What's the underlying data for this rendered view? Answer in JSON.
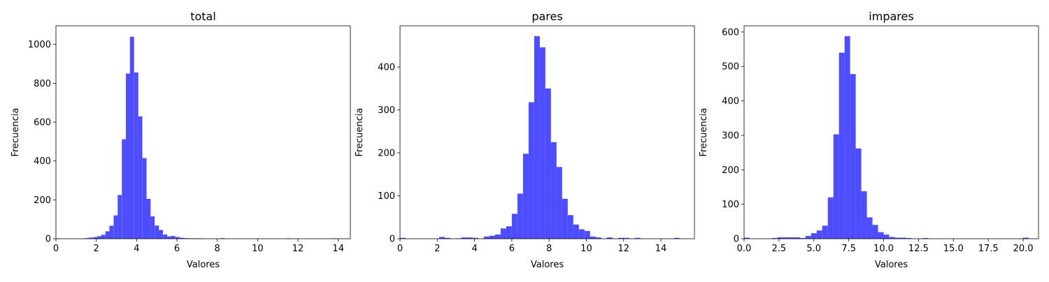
{
  "chart_data": [
    {
      "type": "bar",
      "title": "total",
      "xlabel": "Valores",
      "ylabel": "Frecuencia",
      "xlim": [
        0,
        14.6
      ],
      "ylim": [
        0,
        1096
      ],
      "xticks": [
        0,
        2,
        4,
        6,
        8,
        10,
        12,
        14
      ],
      "yticks": [
        0,
        200,
        400,
        600,
        800,
        1000
      ],
      "bar_color": "#4d4dff",
      "bin_width": 0.204,
      "bins": [
        {
          "x": 0.0,
          "y": 2
        },
        {
          "x": 1.43,
          "y": 3
        },
        {
          "x": 1.63,
          "y": 6
        },
        {
          "x": 1.84,
          "y": 8
        },
        {
          "x": 2.04,
          "y": 13
        },
        {
          "x": 2.24,
          "y": 20
        },
        {
          "x": 2.45,
          "y": 38
        },
        {
          "x": 2.65,
          "y": 67
        },
        {
          "x": 2.86,
          "y": 120
        },
        {
          "x": 3.06,
          "y": 225
        },
        {
          "x": 3.27,
          "y": 512
        },
        {
          "x": 3.47,
          "y": 850
        },
        {
          "x": 3.67,
          "y": 1040
        },
        {
          "x": 3.88,
          "y": 856
        },
        {
          "x": 4.08,
          "y": 630
        },
        {
          "x": 4.29,
          "y": 415
        },
        {
          "x": 4.49,
          "y": 205
        },
        {
          "x": 4.69,
          "y": 115
        },
        {
          "x": 4.9,
          "y": 68
        },
        {
          "x": 5.1,
          "y": 45
        },
        {
          "x": 5.31,
          "y": 22
        },
        {
          "x": 5.51,
          "y": 12
        },
        {
          "x": 5.71,
          "y": 14
        },
        {
          "x": 5.92,
          "y": 9
        },
        {
          "x": 6.12,
          "y": 5
        },
        {
          "x": 6.33,
          "y": 3
        },
        {
          "x": 6.53,
          "y": 2
        },
        {
          "x": 6.73,
          "y": 2
        },
        {
          "x": 6.94,
          "y": 2
        },
        {
          "x": 7.14,
          "y": 1
        },
        {
          "x": 8.16,
          "y": 3
        },
        {
          "x": 11.43,
          "y": 2
        },
        {
          "x": 13.67,
          "y": 2
        }
      ]
    },
    {
      "type": "bar",
      "title": "pares",
      "xlabel": "Valores",
      "ylabel": "Frecuencia",
      "xlim": [
        0,
        15.8
      ],
      "ylim": [
        0,
        496
      ],
      "xticks": [
        0,
        2,
        4,
        6,
        8,
        10,
        12,
        14
      ],
      "yticks": [
        0,
        100,
        200,
        300,
        400
      ],
      "bar_color": "#4d4dff",
      "bin_width": 0.3,
      "bins": [
        {
          "x": 0.0,
          "y": 2
        },
        {
          "x": 2.1,
          "y": 4
        },
        {
          "x": 2.4,
          "y": 2
        },
        {
          "x": 3.0,
          "y": 1
        },
        {
          "x": 3.3,
          "y": 3
        },
        {
          "x": 3.6,
          "y": 3
        },
        {
          "x": 3.9,
          "y": 2
        },
        {
          "x": 4.5,
          "y": 5
        },
        {
          "x": 4.8,
          "y": 7
        },
        {
          "x": 5.1,
          "y": 10
        },
        {
          "x": 5.4,
          "y": 24
        },
        {
          "x": 5.7,
          "y": 29
        },
        {
          "x": 6.0,
          "y": 58
        },
        {
          "x": 6.3,
          "y": 105
        },
        {
          "x": 6.6,
          "y": 198
        },
        {
          "x": 6.9,
          "y": 318
        },
        {
          "x": 7.2,
          "y": 472
        },
        {
          "x": 7.5,
          "y": 446
        },
        {
          "x": 7.8,
          "y": 350
        },
        {
          "x": 8.1,
          "y": 225
        },
        {
          "x": 8.4,
          "y": 167
        },
        {
          "x": 8.7,
          "y": 93
        },
        {
          "x": 9.0,
          "y": 55
        },
        {
          "x": 9.3,
          "y": 33
        },
        {
          "x": 9.6,
          "y": 22
        },
        {
          "x": 9.9,
          "y": 18
        },
        {
          "x": 10.2,
          "y": 5
        },
        {
          "x": 10.5,
          "y": 3
        },
        {
          "x": 11.1,
          "y": 3
        },
        {
          "x": 11.7,
          "y": 2
        },
        {
          "x": 12.0,
          "y": 2
        },
        {
          "x": 12.6,
          "y": 2
        },
        {
          "x": 14.7,
          "y": 2
        }
      ]
    },
    {
      "type": "bar",
      "title": "impares",
      "xlabel": "Valores",
      "ylabel": "Frecuencia",
      "xlim": [
        0,
        21.1
      ],
      "ylim": [
        0,
        618
      ],
      "xticks": [
        0.0,
        2.5,
        5.0,
        7.5,
        10.0,
        12.5,
        15.0,
        17.5,
        20.0
      ],
      "xtick_labels": [
        "0.0",
        "2.5",
        "5.0",
        "7.5",
        "10.0",
        "12.5",
        "15.0",
        "17.5",
        "20.0"
      ],
      "yticks": [
        0,
        100,
        200,
        300,
        400,
        500,
        600
      ],
      "bar_color": "#4d4dff",
      "bin_width": 0.4,
      "bins": [
        {
          "x": 0.0,
          "y": 3
        },
        {
          "x": 2.0,
          "y": 2
        },
        {
          "x": 2.4,
          "y": 4
        },
        {
          "x": 2.8,
          "y": 4
        },
        {
          "x": 3.2,
          "y": 4
        },
        {
          "x": 3.6,
          "y": 4
        },
        {
          "x": 4.0,
          "y": 2
        },
        {
          "x": 4.4,
          "y": 8
        },
        {
          "x": 4.8,
          "y": 16
        },
        {
          "x": 5.2,
          "y": 24
        },
        {
          "x": 5.6,
          "y": 38
        },
        {
          "x": 6.0,
          "y": 120
        },
        {
          "x": 6.4,
          "y": 303
        },
        {
          "x": 6.8,
          "y": 540
        },
        {
          "x": 7.2,
          "y": 588
        },
        {
          "x": 7.6,
          "y": 478
        },
        {
          "x": 8.0,
          "y": 262
        },
        {
          "x": 8.4,
          "y": 138
        },
        {
          "x": 8.8,
          "y": 62
        },
        {
          "x": 9.2,
          "y": 40
        },
        {
          "x": 9.6,
          "y": 19
        },
        {
          "x": 10.0,
          "y": 12
        },
        {
          "x": 10.4,
          "y": 5
        },
        {
          "x": 10.8,
          "y": 3
        },
        {
          "x": 11.2,
          "y": 3
        },
        {
          "x": 11.6,
          "y": 2
        },
        {
          "x": 12.8,
          "y": 2
        },
        {
          "x": 20.0,
          "y": 3
        }
      ]
    }
  ]
}
